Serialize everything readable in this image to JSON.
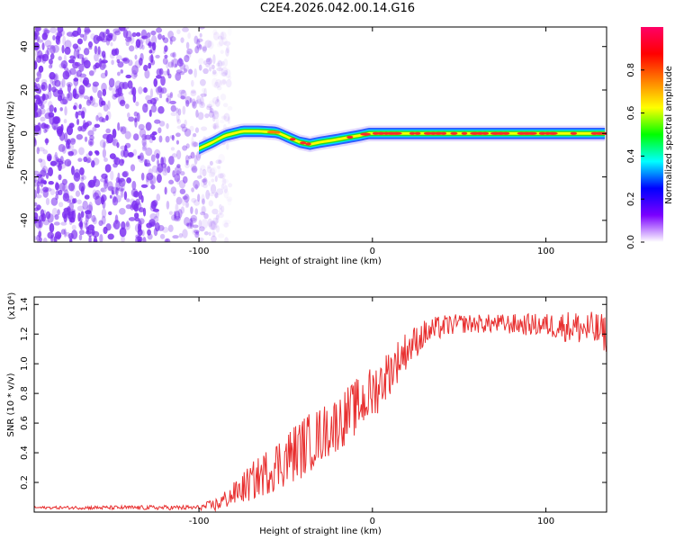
{
  "title": "C2E4.2026.042.00.14.G16",
  "colors": {
    "snr_line": "#e83030",
    "band_center": "#ff2a2a",
    "band_mid": "#22dd22",
    "band_edge": "#1a50ff",
    "noise": "#7a2cf0"
  },
  "chart_data": [
    {
      "type": "heatmap",
      "title": "",
      "xlabel": "Height of straight line (km)",
      "ylabel": "Frequency (Hz)",
      "xlim": [
        -195,
        135
      ],
      "ylim": [
        -50,
        49
      ],
      "xticks": [
        -100,
        0,
        100
      ],
      "xtick_labels": [
        "-100",
        "0",
        "100"
      ],
      "yticks": [
        -40,
        -20,
        0,
        20,
        40
      ],
      "ytick_labels": [
        "-40",
        "-20",
        "0",
        "20",
        "40"
      ],
      "colorbar": {
        "label": "Normalized spectral amplitude",
        "range": [
          0,
          1
        ],
        "ticks": [
          0.0,
          0.2,
          0.4,
          0.6,
          0.8
        ],
        "tick_labels": [
          "0.0",
          "0.2",
          "0.4",
          "0.6",
          "0.8"
        ],
        "stops": [
          "#ffffff",
          "#7b00ff",
          "#0000ff",
          "#00ffff",
          "#00ff00",
          "#ffff00",
          "#ff8000",
          "#ff0000",
          "#ff0066"
        ]
      },
      "noise_region": [
        -195,
        -82
      ],
      "centroid_track": {
        "x": [
          -100,
          -92,
          -85,
          -75,
          -65,
          -55,
          -48,
          -42,
          -36,
          -30,
          -22,
          -15,
          -8,
          -2,
          0,
          5,
          10,
          30,
          60,
          100,
          135
        ],
        "y": [
          -7,
          -4,
          -1,
          1,
          1,
          0.5,
          -2,
          -4,
          -5,
          -4,
          -3,
          -2,
          -1,
          0,
          0,
          0,
          0,
          0,
          0,
          0,
          0
        ]
      }
    },
    {
      "type": "line",
      "title": "",
      "xlabel": "Height of straight line (km)",
      "ylabel": "SNR (10 * v/v)",
      "scale_note": "(x10⁴)",
      "xlim": [
        -195,
        135
      ],
      "ylim": [
        0,
        1.45
      ],
      "xticks": [
        -100,
        0,
        100
      ],
      "xtick_labels": [
        "-100",
        "0",
        "100"
      ],
      "yticks": [
        0.2,
        0.4,
        0.6,
        0.8,
        1.0,
        1.2,
        1.4
      ],
      "ytick_labels": [
        "0.2",
        "0.4",
        "0.6",
        "0.8",
        "1.0",
        "1.2",
        "1.4"
      ],
      "series": [
        {
          "name": "SNR",
          "x": [
            -195,
            -160,
            -120,
            -100,
            -90,
            -80,
            -70,
            -60,
            -50,
            -40,
            -30,
            -20,
            -10,
            0,
            10,
            20,
            30,
            40,
            50,
            70,
            100,
            115,
            130,
            135
          ],
          "y": [
            0.03,
            0.03,
            0.03,
            0.03,
            0.05,
            0.12,
            0.2,
            0.28,
            0.36,
            0.44,
            0.52,
            0.6,
            0.7,
            0.8,
            0.95,
            1.1,
            1.2,
            1.25,
            1.27,
            1.27,
            1.26,
            1.25,
            1.22,
            1.2
          ],
          "noise": [
            0.005,
            0.008,
            0.01,
            0.01,
            0.03,
            0.05,
            0.08,
            0.1,
            0.12,
            0.13,
            0.12,
            0.12,
            0.12,
            0.12,
            0.1,
            0.08,
            0.06,
            0.05,
            0.04,
            0.04,
            0.05,
            0.07,
            0.08,
            0.08
          ]
        }
      ]
    }
  ]
}
